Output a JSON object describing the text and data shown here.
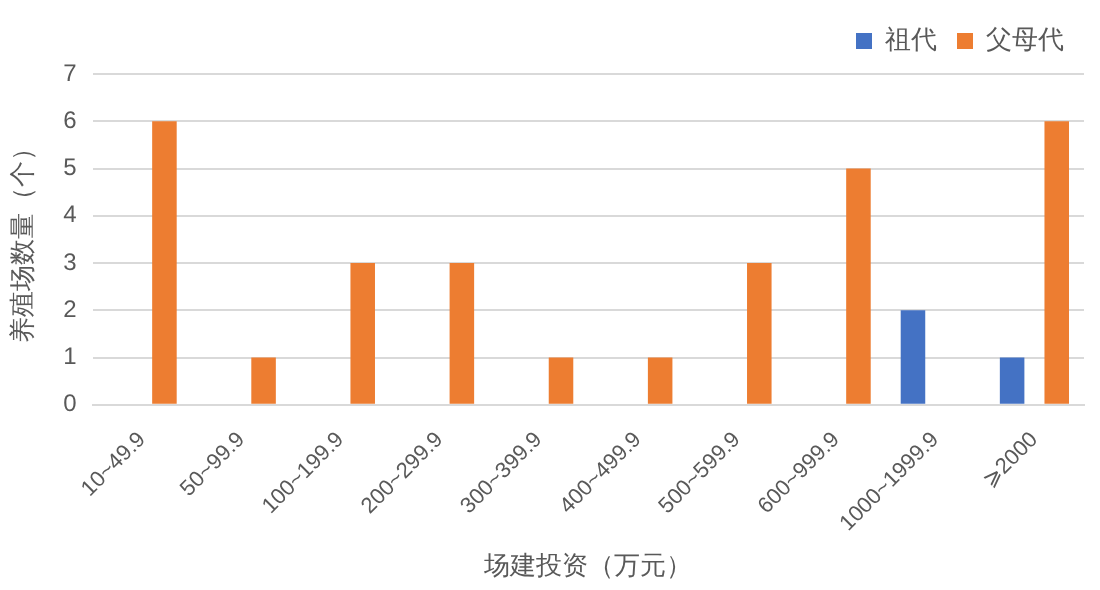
{
  "chart_data": {
    "type": "bar",
    "xlabel": "场建投资（万元）",
    "ylabel": "养殖场数量（个）",
    "categories": [
      "10~49.9",
      "50~99.9",
      "100~199.9",
      "200~299.9",
      "300~399.9",
      "400~499.9",
      "500~599.9",
      "600~999.9",
      "1000~1999.9",
      "⩾2000"
    ],
    "series": [
      {
        "name": "祖代",
        "color": "#4472c4",
        "values": [
          0,
          0,
          0,
          0,
          0,
          0,
          0,
          0,
          2,
          1
        ]
      },
      {
        "name": "父母代",
        "color": "#ed7d31",
        "values": [
          6,
          1,
          3,
          3,
          1,
          1,
          3,
          5,
          0,
          6
        ]
      }
    ],
    "ylim": [
      0,
      7
    ],
    "yticks": [
      0,
      1,
      2,
      3,
      4,
      5,
      6,
      7
    ],
    "grid": "y",
    "legend": "top right"
  }
}
